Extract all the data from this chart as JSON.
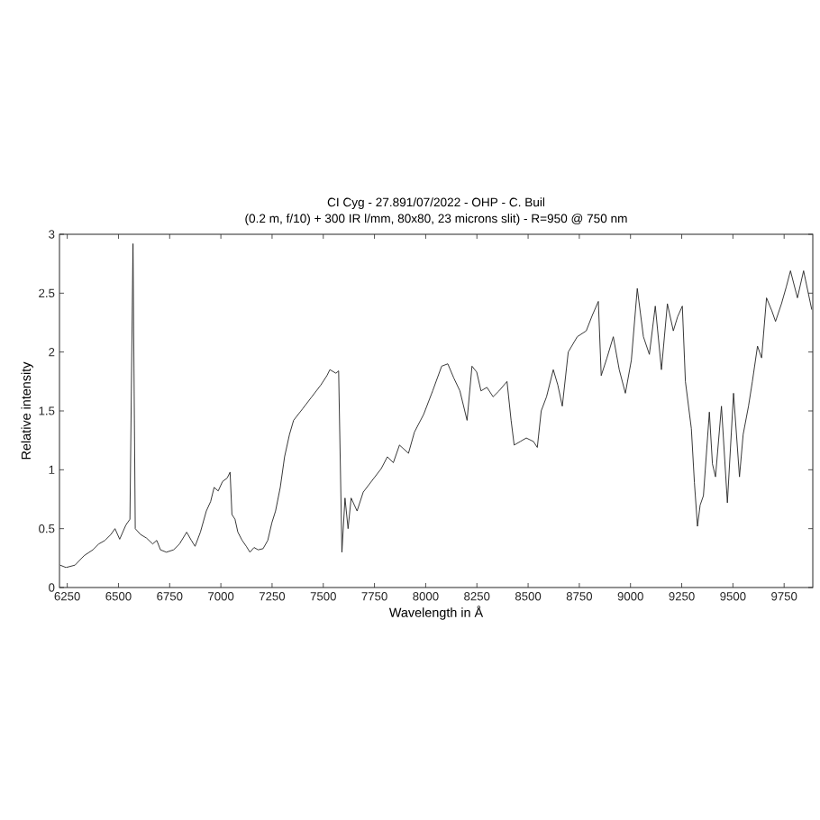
{
  "chart_data": {
    "type": "line",
    "title": "CI Cyg - 27.891/07/2022 - OHP - C. Buil",
    "subtitle": "(0.2 m, f/10) + 300 IR l/mm, 80x80, 23 microns slit) - R=950 @ 750 nm",
    "xlabel": "Wavelength in Å",
    "ylabel": "Relative intensity",
    "x": [
      6215,
      6244,
      6288,
      6332,
      6375,
      6404,
      6434,
      6463,
      6483,
      6506,
      6536,
      6556,
      6571,
      6582,
      6608,
      6637,
      6667,
      6687,
      6705,
      6734,
      6769,
      6798,
      6833,
      6856,
      6874,
      6900,
      6929,
      6950,
      6967,
      6987,
      7008,
      7031,
      7045,
      7054,
      7069,
      7083,
      7104,
      7124,
      7142,
      7162,
      7182,
      7206,
      7229,
      7249,
      7267,
      7290,
      7311,
      7335,
      7355,
      7400,
      7444,
      7488,
      7518,
      7532,
      7562,
      7575,
      7591,
      7606,
      7621,
      7636,
      7665,
      7695,
      7739,
      7783,
      7813,
      7842,
      7872,
      7916,
      7945,
      7990,
      8034,
      8078,
      8108,
      8137,
      8167,
      8202,
      8226,
      8249,
      8270,
      8299,
      8329,
      8358,
      8397,
      8417,
      8432,
      8462,
      8491,
      8526,
      8545,
      8564,
      8590,
      8623,
      8645,
      8667,
      8696,
      8740,
      8784,
      8813,
      8843,
      8857,
      8885,
      8916,
      8945,
      8975,
      9004,
      9033,
      9063,
      9092,
      9121,
      9151,
      9180,
      9209,
      9230,
      9253,
      9268,
      9297,
      9312,
      9327,
      9340,
      9356,
      9385,
      9400,
      9415,
      9444,
      9473,
      9503,
      9532,
      9550,
      9576,
      9595,
      9620,
      9640,
      9664,
      9690,
      9708,
      9737,
      9760,
      9781,
      9815,
      9845,
      9885
    ],
    "series": [
      {
        "color": "#222222",
        "values": [
          0.19,
          0.17,
          0.19,
          0.27,
          0.32,
          0.37,
          0.4,
          0.45,
          0.5,
          0.41,
          0.53,
          0.58,
          2.92,
          0.5,
          0.45,
          0.42,
          0.37,
          0.4,
          0.32,
          0.3,
          0.32,
          0.37,
          0.47,
          0.4,
          0.35,
          0.47,
          0.65,
          0.73,
          0.85,
          0.82,
          0.9,
          0.93,
          0.98,
          0.62,
          0.58,
          0.47,
          0.4,
          0.35,
          0.3,
          0.34,
          0.32,
          0.33,
          0.4,
          0.55,
          0.65,
          0.85,
          1.11,
          1.3,
          1.42,
          1.52,
          1.62,
          1.72,
          1.8,
          1.85,
          1.82,
          1.84,
          0.3,
          0.76,
          0.5,
          0.76,
          0.65,
          0.81,
          0.91,
          1.01,
          1.11,
          1.06,
          1.21,
          1.14,
          1.32,
          1.47,
          1.67,
          1.88,
          1.9,
          1.78,
          1.67,
          1.42,
          1.88,
          1.83,
          1.67,
          1.7,
          1.62,
          1.67,
          1.75,
          1.42,
          1.21,
          1.24,
          1.27,
          1.24,
          1.19,
          1.5,
          1.62,
          1.85,
          1.72,
          1.54,
          2.0,
          2.13,
          2.18,
          2.31,
          2.43,
          1.8,
          1.95,
          2.13,
          1.85,
          1.65,
          1.93,
          2.54,
          2.13,
          1.98,
          2.39,
          1.85,
          2.41,
          2.18,
          2.3,
          2.39,
          1.75,
          1.35,
          0.89,
          0.52,
          0.7,
          0.78,
          1.49,
          1.05,
          0.94,
          1.54,
          0.72,
          1.65,
          0.94,
          1.3,
          1.54,
          1.75,
          2.05,
          1.95,
          2.46,
          2.35,
          2.26,
          2.41,
          2.55,
          2.69,
          2.46,
          2.69,
          2.36
        ]
      }
    ],
    "xlim": [
      6212,
      9890
    ],
    "ylim": [
      0,
      3
    ],
    "xticks": [
      6250,
      6500,
      6750,
      7000,
      7250,
      7500,
      7750,
      8000,
      8250,
      8500,
      8750,
      9000,
      9250,
      9500,
      9750
    ],
    "yticks": [
      0,
      0.5,
      1,
      1.5,
      2,
      2.5,
      3
    ]
  }
}
